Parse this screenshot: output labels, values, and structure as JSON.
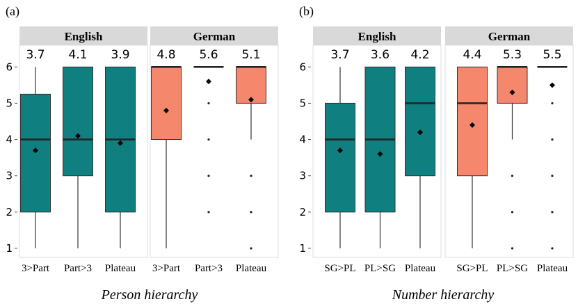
{
  "chart_data": [
    {
      "type": "box",
      "panel_label": "(a)",
      "xlabel": "Person hierarchy",
      "ylim": [
        0.75,
        6.6
      ],
      "yticks": [
        1,
        2,
        3,
        4,
        5,
        6
      ],
      "facets": [
        {
          "name": "English",
          "color": "#0f7f7f",
          "categories": [
            "3>Part",
            "Part>3",
            "Plateau"
          ],
          "boxes": [
            {
              "min": 1,
              "q1": 2,
              "median": 4,
              "q3": 5.25,
              "max": 6,
              "mean": 3.7,
              "outliers": []
            },
            {
              "min": 1,
              "q1": 3,
              "median": 4,
              "q3": 6,
              "max": 6,
              "mean": 4.1,
              "outliers": []
            },
            {
              "min": 1,
              "q1": 2,
              "median": 4,
              "q3": 6,
              "max": 6,
              "mean": 3.9,
              "outliers": []
            }
          ]
        },
        {
          "name": "German",
          "color": "#f4876c",
          "categories": [
            "3>Part",
            "Part>3",
            "Plateau"
          ],
          "boxes": [
            {
              "min": 1,
              "q1": 4,
              "median": 6,
              "q3": 6,
              "max": 6,
              "mean": 4.8,
              "outliers": []
            },
            {
              "min": 6,
              "q1": 6,
              "median": 6,
              "q3": 6,
              "max": 6,
              "mean": 5.6,
              "outliers": [
                5,
                4,
                3,
                2
              ]
            },
            {
              "min": 4,
              "q1": 5,
              "median": 6,
              "q3": 6,
              "max": 6,
              "mean": 5.1,
              "outliers": [
                3,
                2,
                1
              ]
            }
          ]
        }
      ]
    },
    {
      "type": "box",
      "panel_label": "(b)",
      "xlabel": "Number hierarchy",
      "ylim": [
        0.75,
        6.6
      ],
      "yticks": [
        1,
        2,
        3,
        4,
        5,
        6
      ],
      "facets": [
        {
          "name": "English",
          "color": "#0f7f7f",
          "categories": [
            "SG>PL",
            "PL>SG",
            "Plateau"
          ],
          "boxes": [
            {
              "min": 1,
              "q1": 2,
              "median": 4,
              "q3": 5,
              "max": 6,
              "mean": 3.7,
              "outliers": []
            },
            {
              "min": 1,
              "q1": 2,
              "median": 4,
              "q3": 6,
              "max": 6,
              "mean": 3.6,
              "outliers": []
            },
            {
              "min": 1,
              "q1": 3,
              "median": 5,
              "q3": 6,
              "max": 6,
              "mean": 4.2,
              "outliers": []
            }
          ]
        },
        {
          "name": "German",
          "color": "#f4876c",
          "categories": [
            "SG>PL",
            "PL>SG",
            "Plateau"
          ],
          "boxes": [
            {
              "min": 1,
              "q1": 3,
              "median": 5,
              "q3": 6,
              "max": 6,
              "mean": 4.4,
              "outliers": []
            },
            {
              "min": 4,
              "q1": 5,
              "median": 6,
              "q3": 6,
              "max": 6,
              "mean": 5.3,
              "outliers": [
                3,
                2,
                1
              ]
            },
            {
              "min": 6,
              "q1": 6,
              "median": 6,
              "q3": 6,
              "max": 6,
              "mean": 5.5,
              "outliers": [
                5,
                4,
                3,
                2,
                1
              ]
            }
          ]
        }
      ]
    }
  ]
}
